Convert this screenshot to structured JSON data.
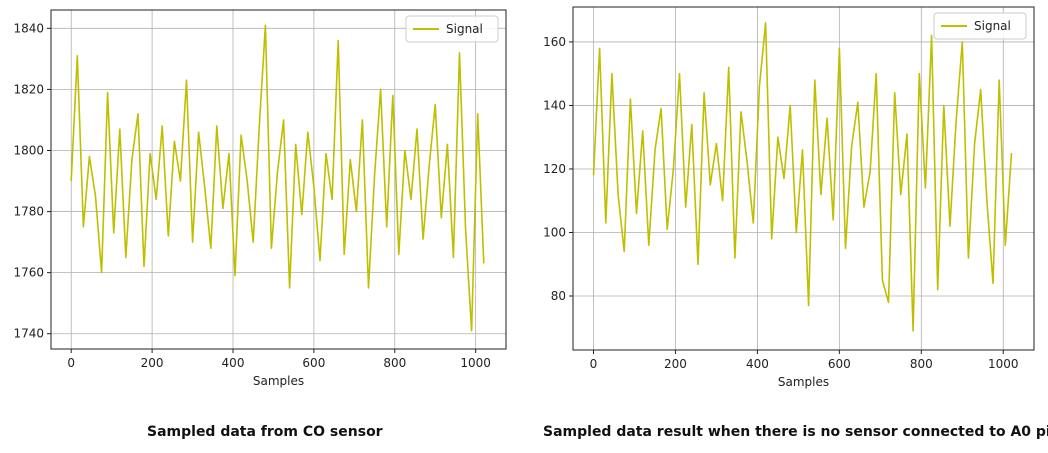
{
  "captions": {
    "left": "Sampled data from CO sensor",
    "right": "Sampled data result when there is no sensor connected to A0 pin"
  },
  "chart_data": [
    {
      "type": "line",
      "title": "",
      "xlabel": "Samples",
      "ylabel": "",
      "xlim": [
        -50,
        1075
      ],
      "ylim": [
        1735,
        1846
      ],
      "xticks": [
        0,
        200,
        400,
        600,
        800,
        1000
      ],
      "yticks": [
        1740,
        1760,
        1780,
        1800,
        1820,
        1840
      ],
      "grid": true,
      "legend": "top-right",
      "line_color": "#bfbf00",
      "series": [
        {
          "name": "Signal",
          "x": [
            0,
            15,
            30,
            45,
            60,
            75,
            90,
            105,
            120,
            135,
            150,
            165,
            180,
            195,
            210,
            225,
            240,
            255,
            270,
            285,
            300,
            315,
            330,
            345,
            360,
            375,
            390,
            405,
            420,
            435,
            450,
            465,
            480,
            495,
            510,
            525,
            540,
            555,
            570,
            585,
            600,
            615,
            630,
            645,
            660,
            675,
            690,
            705,
            720,
            735,
            750,
            765,
            780,
            795,
            810,
            825,
            840,
            855,
            870,
            885,
            900,
            915,
            930,
            945,
            960,
            975,
            990,
            1005,
            1020
          ],
          "values": [
            1790,
            1831,
            1775,
            1798,
            1785,
            1760,
            1819,
            1773,
            1807,
            1765,
            1797,
            1812,
            1762,
            1799,
            1784,
            1808,
            1772,
            1803,
            1790,
            1823,
            1770,
            1806,
            1788,
            1768,
            1808,
            1781,
            1799,
            1759,
            1805,
            1790,
            1770,
            1808,
            1841,
            1768,
            1793,
            1810,
            1755,
            1802,
            1779,
            1806,
            1788,
            1764,
            1799,
            1784,
            1836,
            1766,
            1797,
            1780,
            1810,
            1755,
            1792,
            1820,
            1775,
            1818,
            1766,
            1800,
            1784,
            1807,
            1771,
            1795,
            1815,
            1778,
            1802,
            1765,
            1832,
            1774,
            1741,
            1812,
            1763
          ]
        }
      ]
    },
    {
      "type": "line",
      "title": "",
      "xlabel": "Samples",
      "ylabel": "",
      "xlim": [
        -50,
        1075
      ],
      "ylim": [
        63,
        171
      ],
      "xticks": [
        0,
        200,
        400,
        600,
        800,
        1000
      ],
      "yticks": [
        80,
        100,
        120,
        140,
        160
      ],
      "grid": true,
      "legend": "top-right",
      "line_color": "#bfbf00",
      "series": [
        {
          "name": "Signal",
          "x": [
            0,
            15,
            30,
            45,
            60,
            75,
            90,
            105,
            120,
            135,
            150,
            165,
            180,
            195,
            210,
            225,
            240,
            255,
            270,
            285,
            300,
            315,
            330,
            345,
            360,
            375,
            390,
            405,
            420,
            435,
            450,
            465,
            480,
            495,
            510,
            525,
            540,
            555,
            570,
            585,
            600,
            615,
            630,
            645,
            660,
            675,
            690,
            705,
            720,
            735,
            750,
            765,
            780,
            795,
            810,
            825,
            840,
            855,
            870,
            885,
            900,
            915,
            930,
            945,
            960,
            975,
            990,
            1005,
            1020
          ],
          "values": [
            118,
            158,
            103,
            150,
            112,
            94,
            142,
            106,
            132,
            96,
            126,
            139,
            101,
            120,
            150,
            108,
            134,
            90,
            144,
            115,
            128,
            110,
            152,
            92,
            138,
            122,
            103,
            146,
            166,
            98,
            130,
            117,
            140,
            100,
            126,
            77,
            148,
            112,
            136,
            104,
            158,
            95,
            127,
            141,
            108,
            119,
            150,
            85,
            78,
            144,
            112,
            131,
            69,
            150,
            114,
            162,
            82,
            140,
            102,
            135,
            160,
            92,
            128,
            145,
            110,
            84,
            148,
            96,
            125
          ]
        }
      ]
    }
  ]
}
